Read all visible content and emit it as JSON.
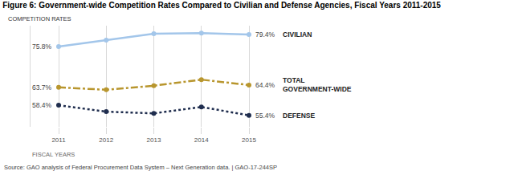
{
  "chart_data": {
    "type": "line",
    "title": "Figure 6: Government-wide Competition Rates Compared to Civilian and Defense Agencies, Fiscal Years 2011-2015",
    "ylabel": "COMPETITION RATES",
    "xlabel": "FISCAL YEARS",
    "source": "Source: GAO analysis of Federal Procurement Data System – Next Generation data. | GAO-17-244SP",
    "categories": [
      "2011",
      "2012",
      "2013",
      "2014",
      "2015"
    ],
    "series": [
      {
        "name": "CIVILIAN",
        "color": "#a3c6ea",
        "line_style": "solid",
        "marker": "circle",
        "values": [
          75.8,
          77.7,
          79.6,
          79.8,
          79.4
        ],
        "value_labels": [
          "75.8%",
          null,
          null,
          null,
          "79.4%"
        ]
      },
      {
        "name": "TOTAL GOVERNMENT-WIDE",
        "color": "#b8962e",
        "line_style": "dashdot",
        "marker": "circle",
        "values": [
          63.7,
          63.0,
          64.2,
          66.0,
          64.4
        ],
        "value_labels": [
          "63.7%",
          null,
          null,
          null,
          "64.4%"
        ]
      },
      {
        "name": "DEFENSE",
        "color": "#1f2d4e",
        "line_style": "dot",
        "marker": "circle",
        "values": [
          58.4,
          56.5,
          56.0,
          57.9,
          55.4
        ],
        "value_labels": [
          "58.4%",
          null,
          null,
          null,
          "55.4%"
        ]
      }
    ],
    "ylim": [
      52,
      82
    ],
    "tick_labels": "x",
    "grid": true
  }
}
